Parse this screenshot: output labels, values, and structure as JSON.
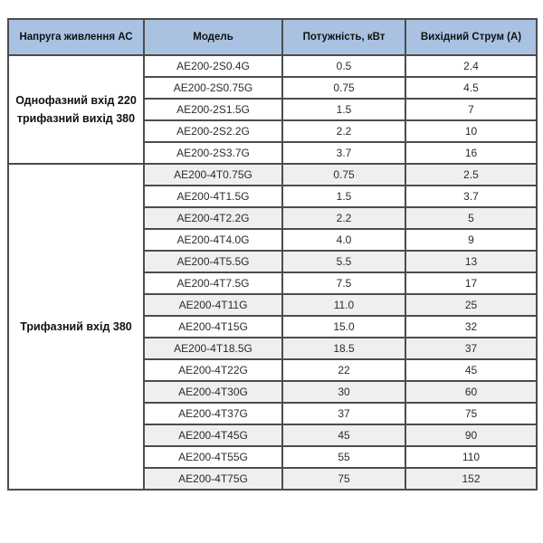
{
  "table": {
    "headers": [
      "Напруга живлення АС",
      "Модель",
      "Потужність, кВт",
      "Вихідний Струм (А)"
    ],
    "sections": [
      {
        "label": "Однофазний вхід 220 трифазний вихід 380",
        "rows": [
          [
            "AE200-2S0.4G",
            "0.5",
            "2.4"
          ],
          [
            "AE200-2S0.75G",
            "0.75",
            "4.5"
          ],
          [
            "AE200-2S1.5G",
            "1.5",
            "7"
          ],
          [
            "AE200-2S2.2G",
            "2.2",
            "10"
          ],
          [
            "AE200-2S3.7G",
            "3.7",
            "16"
          ]
        ]
      },
      {
        "label": "Трифазний вхід 380",
        "rows": [
          [
            "AE200-4T0.75G",
            "0.75",
            "2.5"
          ],
          [
            "AE200-4T1.5G",
            "1.5",
            "3.7"
          ],
          [
            "AE200-4T2.2G",
            "2.2",
            "5"
          ],
          [
            "AE200-4T4.0G",
            "4.0",
            "9"
          ],
          [
            "AE200-4T5.5G",
            "5.5",
            "13"
          ],
          [
            "AE200-4T7.5G",
            "7.5",
            "17"
          ],
          [
            "AE200-4T11G",
            "11.0",
            "25"
          ],
          [
            "AE200-4T15G",
            "15.0",
            "32"
          ],
          [
            "AE200-4T18.5G",
            "18.5",
            "37"
          ],
          [
            "AE200-4T22G",
            "22",
            "45"
          ],
          [
            "AE200-4T30G",
            "30",
            "60"
          ],
          [
            "AE200-4T37G",
            "37",
            "75"
          ],
          [
            "AE200-4T45G",
            "45",
            "90"
          ],
          [
            "AE200-4T55G",
            "55",
            "110"
          ],
          [
            "AE200-4T75G",
            "75",
            "152"
          ]
        ]
      }
    ]
  },
  "colors": {
    "header_bg": "#a9c2e2",
    "border": "#4c4c4c",
    "stripe": "#efefef"
  }
}
